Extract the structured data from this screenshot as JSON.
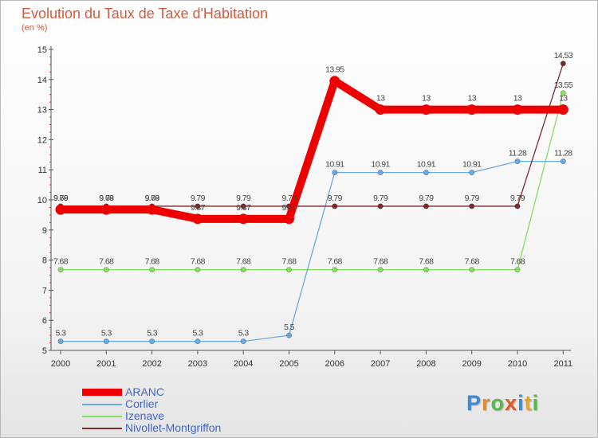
{
  "title": "Evolution du Taux de Taxe d'Habitation",
  "subtitle": "(en %)",
  "logo": {
    "letters": [
      "P",
      "r",
      "o",
      "x",
      "i",
      "t",
      "i"
    ],
    "colors": [
      "#3a8ad8",
      "#e38a2a",
      "#58b848",
      "#e05a2a",
      "#3a8ad8",
      "#e0a82a",
      "#58b848"
    ]
  },
  "chart_data": {
    "type": "line",
    "title": "Evolution du Taux de Taxe d'Habitation",
    "ylabel": "(en %)",
    "xlabel": "",
    "x": [
      "2000",
      "2001",
      "2002",
      "2003",
      "2004",
      "2005",
      "2006",
      "2007",
      "2008",
      "2009",
      "2010",
      "2011"
    ],
    "ylim": [
      5,
      15
    ],
    "yticks": [
      "5",
      "6",
      "7",
      "8",
      "9",
      "10",
      "11",
      "12",
      "13",
      "14",
      "15"
    ],
    "grid": false,
    "legend_position": "bottom-left",
    "series": [
      {
        "name": "Izenave",
        "color": "#88dd66",
        "values": [
          7.68,
          7.68,
          7.68,
          7.68,
          7.68,
          7.68,
          7.68,
          7.68,
          7.68,
          7.68,
          7.68,
          13.55
        ],
        "labels": [
          "7.68",
          "7.68",
          "7.68",
          "7.68",
          "7.68",
          "7.68",
          "7.68",
          "7.68",
          "7.68",
          "7.68",
          "7.68",
          "13.55"
        ]
      },
      {
        "name": "Corlier",
        "color": "#6aaae0",
        "values": [
          5.3,
          5.3,
          5.3,
          5.3,
          5.3,
          5.5,
          10.91,
          10.91,
          10.91,
          10.91,
          11.28,
          11.28
        ],
        "labels": [
          "5.3",
          "5.3",
          "5.3",
          "5.3",
          "5.3",
          "5.5",
          "10.91",
          "10.91",
          "10.91",
          "10.91",
          "11.28",
          "11.28"
        ]
      },
      {
        "name": "Nivollet-Montgriffon",
        "color": "#7a2a2a",
        "values": [
          9.79,
          9.79,
          9.79,
          9.79,
          9.79,
          9.79,
          9.79,
          9.79,
          9.79,
          9.79,
          9.79,
          14.53
        ],
        "labels": [
          "9.79",
          "9.79",
          "9.79",
          "9.79",
          "9.79",
          "9.79",
          "9.79",
          "9.79",
          "9.79",
          "9.79",
          "9.79",
          "14.53"
        ]
      },
      {
        "name": "ARANC",
        "color": "#ee0000",
        "values": [
          9.68,
          9.68,
          9.68,
          9.37,
          9.37,
          9.37,
          13.95,
          13,
          13,
          13,
          13,
          13
        ],
        "labels": [
          "9.68",
          "9.68",
          "9.68",
          "9.37",
          "9.37",
          "9.37",
          "13.95",
          "13",
          "13",
          "13",
          "13",
          "13"
        ]
      }
    ],
    "legend": [
      "ARANC",
      "Corlier",
      "Izenave",
      "Nivollet-Montgriffon"
    ]
  }
}
